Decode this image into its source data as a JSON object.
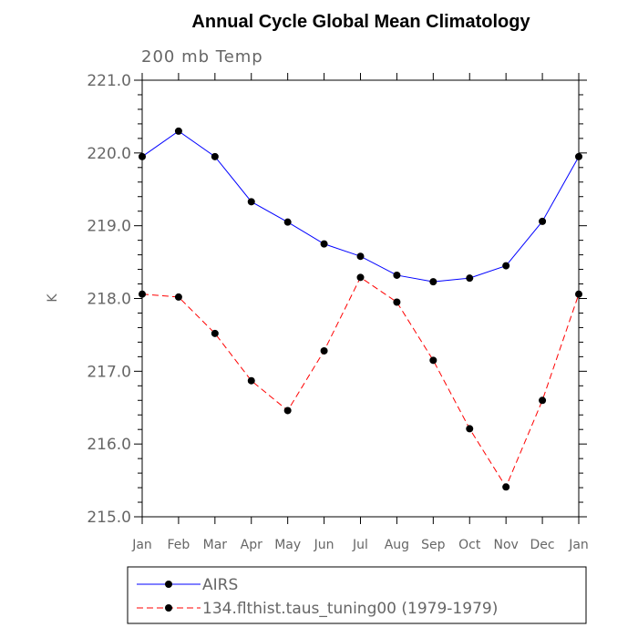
{
  "chart_data": {
    "type": "line",
    "title": "Annual Cycle Global Mean Climatology",
    "subtitle": "200 mb Temp",
    "ylabel": "K",
    "xlabel": "",
    "categories": [
      "Jan",
      "Feb",
      "Mar",
      "Apr",
      "May",
      "Jun",
      "Jul",
      "Aug",
      "Sep",
      "Oct",
      "Nov",
      "Dec",
      "Jan"
    ],
    "ylim": [
      215.0,
      221.0
    ],
    "yticks": [
      "215.0",
      "216.0",
      "217.0",
      "218.0",
      "219.0",
      "220.0",
      "221.0"
    ],
    "series": [
      {
        "name": "AIRS",
        "color": "#0000ff",
        "dash": "solid",
        "values": [
          219.95,
          220.3,
          219.95,
          219.33,
          219.05,
          218.75,
          218.58,
          218.32,
          218.23,
          218.28,
          218.45,
          219.06,
          219.95
        ]
      },
      {
        "name": "134.flthist.taus_tuning00 (1979-1979)",
        "color": "#ff0000",
        "dash": "dashed",
        "values": [
          218.06,
          218.02,
          217.52,
          216.87,
          216.46,
          217.28,
          218.29,
          217.95,
          217.15,
          216.21,
          215.41,
          216.6,
          218.06
        ]
      }
    ],
    "grid": false,
    "legend": "bottom"
  }
}
